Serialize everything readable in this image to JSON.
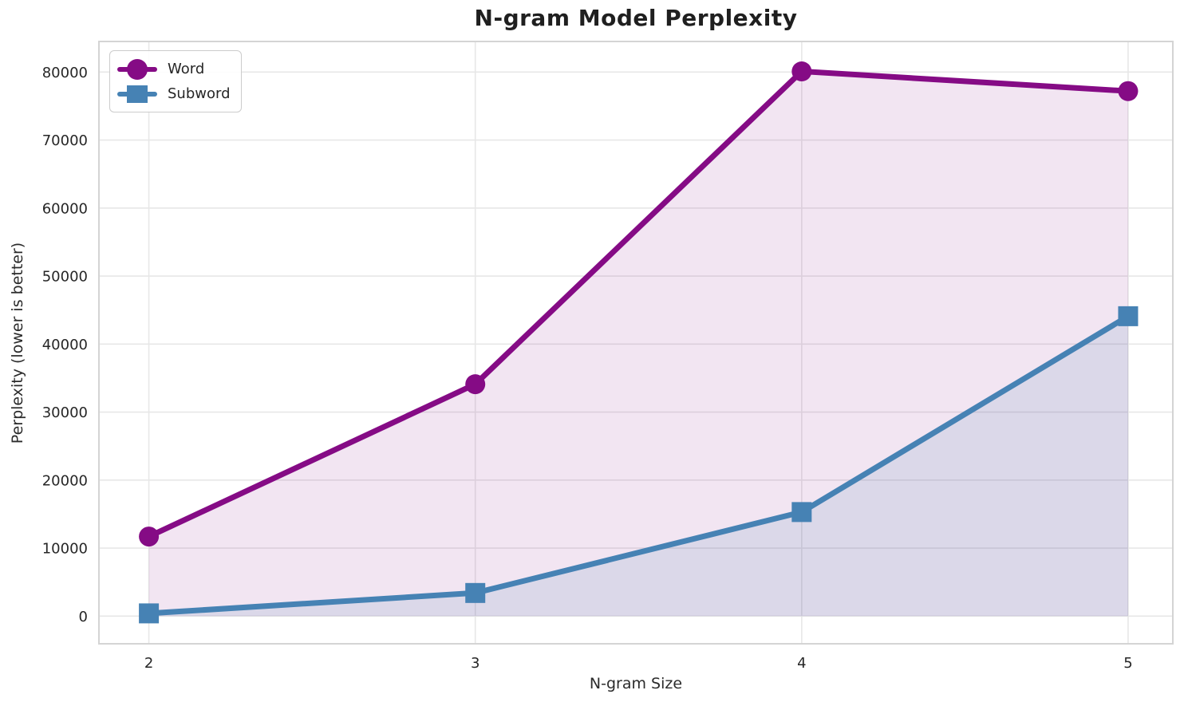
{
  "title": "N-gram Model Perplexity",
  "chart_data": {
    "type": "line",
    "x": [
      2,
      3,
      4,
      5
    ],
    "series": [
      {
        "name": "Word",
        "marker": "circle",
        "color": "#850b85",
        "fill_color": "rgba(128,0,128,0.10)",
        "values": [
          11700,
          34100,
          80100,
          77200
        ]
      },
      {
        "name": "Subword",
        "marker": "square",
        "color": "#4682b4",
        "fill_color": "rgba(70,130,180,0.13)",
        "values": [
          400,
          3400,
          15300,
          44100
        ]
      }
    ],
    "title": "N-gram Model Perplexity",
    "xlabel": "N-gram Size",
    "ylabel": "Perplexity (lower is better)",
    "xticks": [
      2,
      3,
      4,
      5
    ],
    "yticks": [
      0,
      10000,
      20000,
      30000,
      40000,
      50000,
      60000,
      70000,
      80000
    ],
    "xlim": [
      1.847,
      5.137
    ],
    "ylim": [
      -4070,
      84500
    ],
    "grid": true,
    "fill_baseline": 0,
    "legend_position": "upper-left"
  },
  "colors": {
    "background": "#ffffff",
    "grid": "#e7e7e7",
    "spine": "#d4d4d4",
    "tick_text": "#262626",
    "title": "#1f1f1f"
  },
  "legend": {
    "items": [
      {
        "label": "Word"
      },
      {
        "label": "Subword"
      }
    ]
  }
}
